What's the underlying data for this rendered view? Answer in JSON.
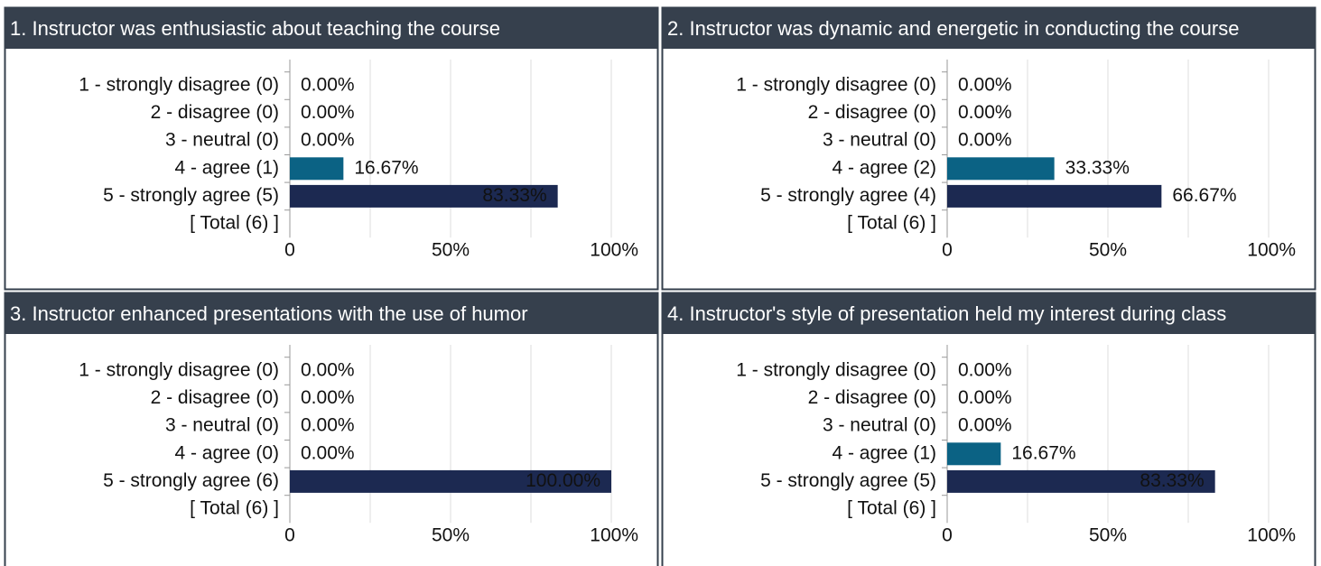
{
  "chart_data": [
    {
      "type": "bar",
      "title": "1. Instructor was enthusiastic about teaching the course",
      "categories": [
        "1 - strongly disagree (0)",
        "2 - disagree (0)",
        "3 - neutral (0)",
        "4 - agree (1)",
        "5 - strongly agree (5)",
        "[ Total (6) ]"
      ],
      "values": [
        0,
        0,
        0,
        16.67,
        83.33,
        null
      ],
      "value_labels": [
        "0.00%",
        "0.00%",
        "0.00%",
        "16.67%",
        "83.33%",
        null
      ],
      "colors": [
        "#0b6284",
        "#0b6284",
        "#0b6284",
        "#0b6284",
        "#1c2951",
        null
      ],
      "xlim": [
        0,
        100
      ],
      "xticks": [
        0,
        {
          "value": 50,
          "label": "50%"
        },
        {
          "value": 100,
          "label": "100%"
        }
      ],
      "grid": true
    },
    {
      "type": "bar",
      "title": "2. Instructor was dynamic and energetic in conducting the course",
      "categories": [
        "1 - strongly disagree (0)",
        "2 - disagree (0)",
        "3 - neutral (0)",
        "4 - agree (2)",
        "5 - strongly agree (4)",
        "[ Total (6) ]"
      ],
      "values": [
        0,
        0,
        0,
        33.33,
        66.67,
        null
      ],
      "value_labels": [
        "0.00%",
        "0.00%",
        "0.00%",
        "33.33%",
        "66.67%",
        null
      ],
      "colors": [
        "#0b6284",
        "#0b6284",
        "#0b6284",
        "#0b6284",
        "#1c2951",
        null
      ],
      "xlim": [
        0,
        100
      ],
      "xticks": [
        0,
        {
          "value": 50,
          "label": "50%"
        },
        {
          "value": 100,
          "label": "100%"
        }
      ],
      "grid": true
    },
    {
      "type": "bar",
      "title": "3. Instructor enhanced presentations with the use of humor",
      "categories": [
        "1 - strongly disagree (0)",
        "2 - disagree (0)",
        "3 - neutral (0)",
        "4 - agree (0)",
        "5 - strongly agree (6)",
        "[ Total (6) ]"
      ],
      "values": [
        0,
        0,
        0,
        0,
        100,
        null
      ],
      "value_labels": [
        "0.00%",
        "0.00%",
        "0.00%",
        "0.00%",
        "100.00%",
        null
      ],
      "colors": [
        "#0b6284",
        "#0b6284",
        "#0b6284",
        "#0b6284",
        "#1c2951",
        null
      ],
      "xlim": [
        0,
        100
      ],
      "xticks": [
        0,
        {
          "value": 50,
          "label": "50%"
        },
        {
          "value": 100,
          "label": "100%"
        }
      ],
      "grid": true
    },
    {
      "type": "bar",
      "title": "4. Instructor's style of presentation held my interest during class",
      "categories": [
        "1 - strongly disagree (0)",
        "2 - disagree (0)",
        "3 - neutral (0)",
        "4 - agree (1)",
        "5 - strongly agree (5)",
        "[ Total (6) ]"
      ],
      "values": [
        0,
        0,
        0,
        16.67,
        83.33,
        null
      ],
      "value_labels": [
        "0.00%",
        "0.00%",
        "0.00%",
        "16.67%",
        "83.33%",
        null
      ],
      "colors": [
        "#0b6284",
        "#0b6284",
        "#0b6284",
        "#0b6284",
        "#1c2951",
        null
      ],
      "xlim": [
        0,
        100
      ],
      "xticks": [
        0,
        {
          "value": 50,
          "label": "50%"
        },
        {
          "value": 100,
          "label": "100%"
        }
      ],
      "grid": true
    }
  ]
}
